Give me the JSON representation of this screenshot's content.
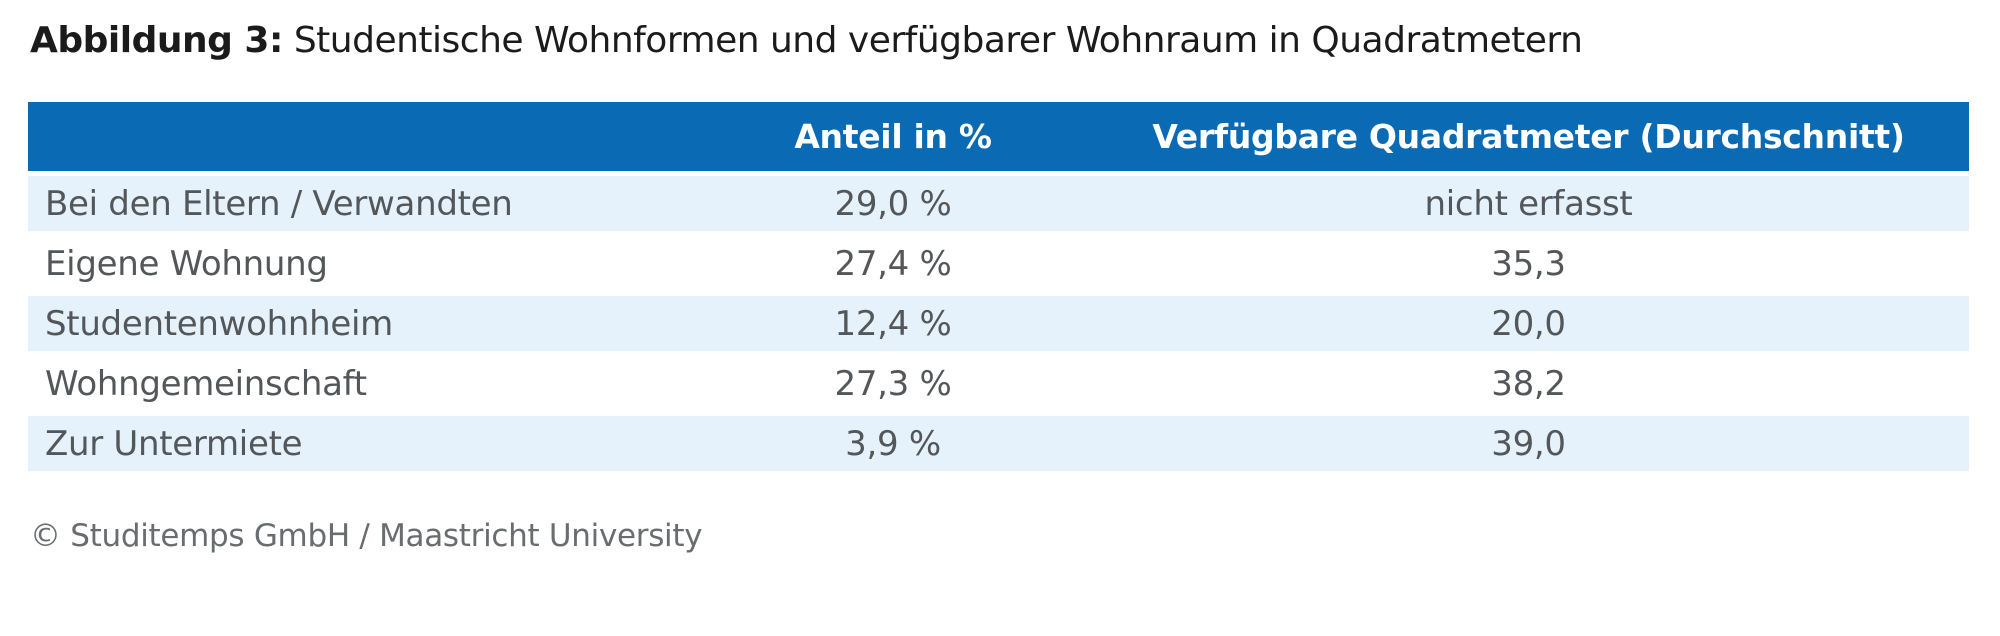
{
  "title": {
    "label": "Abbildung 3:",
    "text": "Studentische Wohnformen und verfügbarer Wohnraum in Quadratmetern"
  },
  "table": {
    "columns": [
      "",
      "Anteil in %",
      "Verfügbare Quadratmeter (Durchschnitt)"
    ],
    "rows": [
      {
        "label": "Bei den Eltern / Verwandten",
        "share": "29,0 %",
        "sqm": "nicht erfasst"
      },
      {
        "label": "Eigene Wohnung",
        "share": "27,4 %",
        "sqm": "35,3"
      },
      {
        "label": "Studentenwohnheim",
        "share": "12,4 %",
        "sqm": "20,0"
      },
      {
        "label": "Wohngemeinschaft",
        "share": "27,3 %",
        "sqm": "38,2"
      },
      {
        "label": "Zur Untermiete",
        "share": "3,9 %",
        "sqm": "39,0"
      }
    ]
  },
  "footer": {
    "copyright": "© Studitemps GmbH / Maastricht University"
  },
  "colors": {
    "header_bg": "#0b6ab4",
    "header_text": "#ffffff",
    "row_alt_bg": "#e6f2fb",
    "row_bg": "#ffffff",
    "body_text": "#53575a",
    "title_text": "#1b1b1b",
    "footer_text": "#696d70"
  },
  "chart_data": {
    "type": "table",
    "title": "Abbildung 3: Studentische Wohnformen und verfügbarer Wohnraum in Quadratmetern",
    "columns": [
      "",
      "Anteil in %",
      "Verfügbare Quadratmeter (Durchschnitt)"
    ],
    "categories": [
      "Bei den Eltern / Verwandten",
      "Eigene Wohnung",
      "Studentenwohnheim",
      "Wohngemeinschaft",
      "Zur Untermiete"
    ],
    "series": [
      {
        "name": "Anteil in %",
        "values": [
          29.0,
          27.4,
          12.4,
          27.3,
          3.9
        ]
      },
      {
        "name": "Verfügbare Quadratmeter (Durchschnitt)",
        "values": [
          null,
          35.3,
          20.0,
          38.2,
          39.0
        ]
      }
    ],
    "cells": [
      [
        "Bei den Eltern / Verwandten",
        "29,0 %",
        "nicht erfasst"
      ],
      [
        "Eigene Wohnung",
        "27,4 %",
        "35,3"
      ],
      [
        "Studentenwohnheim",
        "12,4 %",
        "20,0"
      ],
      [
        "Wohngemeinschaft",
        "27,3 %",
        "38,2"
      ],
      [
        "Zur Untermiete",
        "3,9 %",
        "39,0"
      ]
    ],
    "source": "© Studitemps GmbH / Maastricht University",
    "layout_hints": {
      "header_fill": "#0b6ab4",
      "zebra_fill": "#e6f2fb",
      "first_column_align": "left",
      "value_columns_align": "center"
    }
  }
}
